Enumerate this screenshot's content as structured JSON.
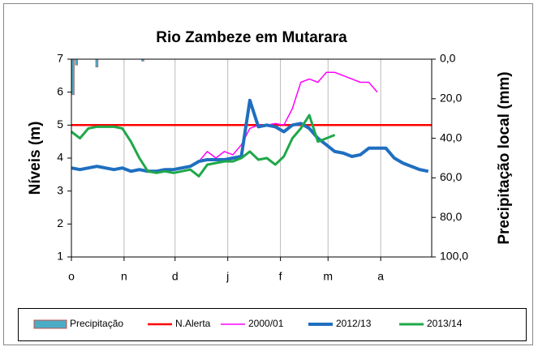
{
  "chart_data": {
    "type": "line",
    "title": "Rio Zambeze em Mutarara",
    "y_label": "Níveis (m)",
    "y2_label": "Precipitação local  (mm)",
    "x": [
      0,
      5,
      10,
      15,
      20,
      25,
      30,
      35,
      40,
      45,
      50,
      55,
      60,
      65,
      70,
      75,
      80,
      85,
      90,
      95,
      100,
      105,
      110,
      115,
      120,
      125,
      130,
      135,
      140,
      145,
      150,
      155,
      160,
      165,
      170,
      175,
      180,
      185,
      190,
      195,
      200,
      205,
      210
    ],
    "xlim": [
      0,
      212
    ],
    "xticks": [
      {
        "value": 0,
        "label": "o"
      },
      {
        "value": 31,
        "label": "n"
      },
      {
        "value": 61,
        "label": "d"
      },
      {
        "value": 92,
        "label": "j"
      },
      {
        "value": 123,
        "label": "f"
      },
      {
        "value": 151,
        "label": "m"
      },
      {
        "value": 182,
        "label": "a"
      }
    ],
    "ylim": [
      1,
      7
    ],
    "yticks": [
      1,
      2,
      3,
      4,
      5,
      6,
      7
    ],
    "y2lim": [
      100,
      0
    ],
    "y2ticks": [
      {
        "value": 0,
        "label": "0,0"
      },
      {
        "value": 20,
        "label": "20,0"
      },
      {
        "value": 40,
        "label": "40,0"
      },
      {
        "value": 60,
        "label": "60,0"
      },
      {
        "value": 80,
        "label": "80,0"
      },
      {
        "value": 100,
        "label": "100,0"
      }
    ],
    "grid": true,
    "legend": "bottom",
    "series": [
      {
        "name": "Precipitação",
        "type": "bar",
        "axis": "y2",
        "color": "#4bacc6",
        "edge": "#c0504d",
        "x": [
          1,
          3,
          15,
          42
        ],
        "values": [
          18,
          3,
          4,
          1
        ]
      },
      {
        "name": "N.Alerta",
        "color": "#ff0000",
        "x": [
          0,
          212
        ],
        "values": [
          5,
          5
        ]
      },
      {
        "name": "2000/01",
        "color": "#ff00ff",
        "values": [
          null,
          null,
          null,
          null,
          null,
          null,
          null,
          null,
          null,
          null,
          null,
          null,
          null,
          null,
          null,
          3.9,
          4.2,
          4.0,
          4.2,
          4.1,
          4.4,
          4.9,
          5.0,
          5.0,
          5.05,
          5.0,
          5.5,
          6.3,
          6.4,
          6.3,
          6.6,
          6.6,
          6.5,
          6.4,
          6.3,
          6.3,
          6.0,
          null,
          null,
          null,
          null,
          null,
          null
        ]
      },
      {
        "name": "2012/13",
        "color": "#1f6fc0",
        "values": [
          3.7,
          3.65,
          3.7,
          3.75,
          3.7,
          3.65,
          3.7,
          3.6,
          3.65,
          3.6,
          3.6,
          3.65,
          3.65,
          3.7,
          3.75,
          3.9,
          3.95,
          3.95,
          3.95,
          4.0,
          4.05,
          5.75,
          4.95,
          5.0,
          4.95,
          4.8,
          5.0,
          5.05,
          4.9,
          4.6,
          4.4,
          4.2,
          4.15,
          4.05,
          4.1,
          4.3,
          4.3,
          4.3,
          4.0,
          3.85,
          3.75,
          3.65,
          3.6
        ]
      },
      {
        "name": "2013/14",
        "color": "#1fa84a",
        "values": [
          4.8,
          4.6,
          4.9,
          4.95,
          4.95,
          4.95,
          4.9,
          4.5,
          4.0,
          3.6,
          3.55,
          3.6,
          3.55,
          3.6,
          3.65,
          3.45,
          3.8,
          3.85,
          3.9,
          3.9,
          4.0,
          4.2,
          3.95,
          4.0,
          3.8,
          4.05,
          4.6,
          4.9,
          5.3,
          4.5,
          4.6,
          4.7,
          null,
          null,
          null,
          null,
          null,
          null,
          null,
          null,
          null,
          null,
          null
        ]
      }
    ]
  }
}
